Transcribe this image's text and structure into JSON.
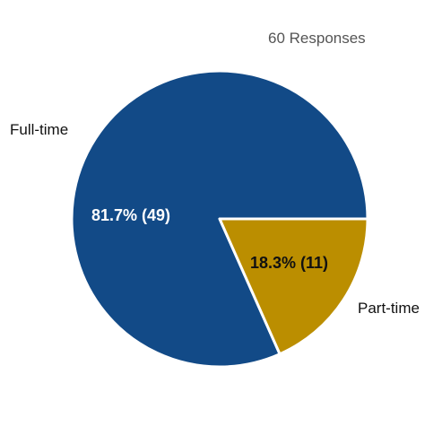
{
  "header": {
    "responses_label": "60 Responses"
  },
  "chart_data": {
    "type": "pie",
    "title": "",
    "total_label": "60 Responses",
    "slices": [
      {
        "name": "Full-time",
        "value": 49,
        "percent": 81.7,
        "data_label": "81.7% (49)",
        "color": "#124a87",
        "label_color": "#ffffff"
      },
      {
        "name": "Part-time",
        "value": 11,
        "percent": 18.3,
        "data_label": "18.3% (11)",
        "color": "#bb8e00",
        "label_color": "#111111"
      }
    ],
    "start": "3 o'clock, counter-clockwise for first slice",
    "legend": "none (category labels beside slices)"
  }
}
